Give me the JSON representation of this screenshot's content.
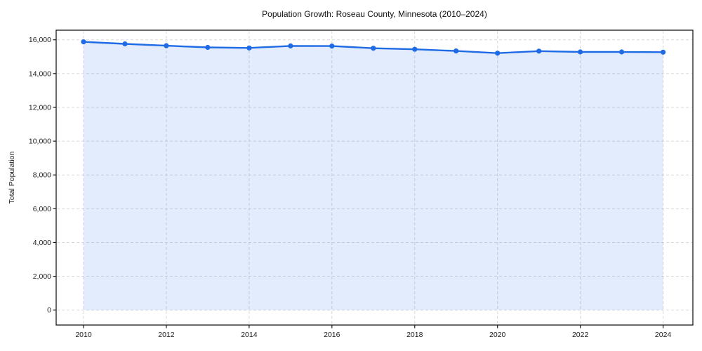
{
  "window": {
    "background": "#ffffff"
  },
  "chart_data": {
    "type": "line",
    "title": "Population Growth: Roseau County, Minnesota (2010–2024)",
    "xlabel": "",
    "ylabel": "Total Population",
    "x": [
      2010,
      2011,
      2012,
      2013,
      2014,
      2015,
      2016,
      2017,
      2018,
      2019,
      2020,
      2021,
      2022,
      2023,
      2024
    ],
    "series": [
      {
        "name": "Total Population",
        "values": [
          15880,
          15760,
          15650,
          15550,
          15520,
          15640,
          15630,
          15500,
          15440,
          15340,
          15210,
          15330,
          15280,
          15280,
          15270
        ]
      }
    ],
    "xticks": [
      2010,
      2012,
      2014,
      2016,
      2018,
      2020,
      2022,
      2024
    ],
    "yticks": [
      0,
      2000,
      4000,
      6000,
      8000,
      10000,
      12000,
      14000,
      16000
    ],
    "xlim": [
      2009.34,
      2024.72
    ],
    "ylim": [
      -885,
      16565
    ],
    "grid": true,
    "grid_style": "dashed",
    "legend_position": "none",
    "marker": "circle",
    "area_fill": true,
    "colors": {
      "line": "#1f6ae5",
      "fill": "rgba(31, 106, 229, 0.13)",
      "grid": "#d8d8d8",
      "spine": "#1a1a1a",
      "text": "#1a1a1a",
      "background": "#ffffff"
    }
  }
}
